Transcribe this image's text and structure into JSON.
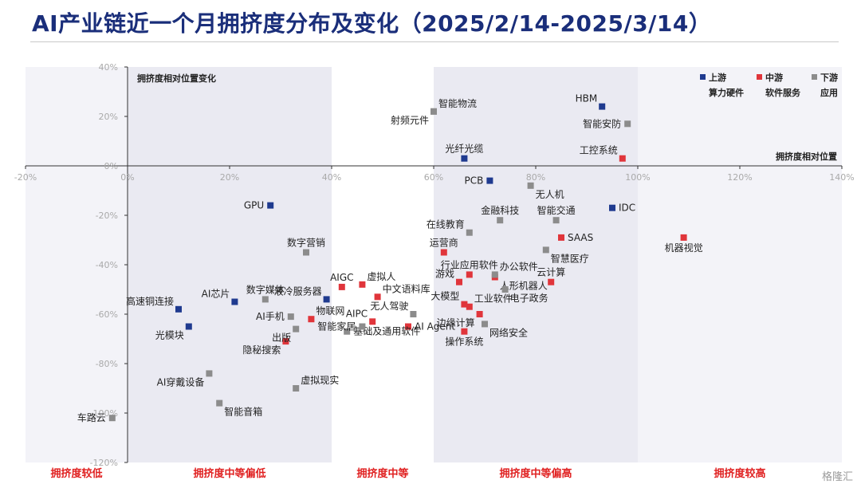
{
  "title": "AI产业链近一个月拥挤度分布及变化（2025/2/14-2025/3/14）",
  "watermark": "格隆汇",
  "colors": {
    "upstream": "#1f3a8f",
    "midstream": "#e0353b",
    "downstream": "#8c8c8c",
    "band": "#eaeaf2"
  },
  "chart_data": {
    "type": "scatter",
    "x_axis_title": "拥挤度相对位置",
    "y_axis_title": "拥挤度相对位置变化",
    "xlim": [
      -20,
      140
    ],
    "ylim": [
      -120,
      40
    ],
    "x_ticks": [
      "-20%",
      "0%",
      "20%",
      "40%",
      "60%",
      "80%",
      "100%",
      "120%",
      "140%"
    ],
    "y_ticks": [
      "40%",
      "20%",
      "0%",
      "-20%",
      "-40%",
      "-60%",
      "-80%",
      "-100%",
      "-120%"
    ],
    "zones": [
      "拥挤度较低",
      "拥挤度中等偏低",
      "拥挤度中等",
      "拥挤度中等偏高",
      "拥挤度较高"
    ],
    "legend": [
      {
        "series": "upstream",
        "title": "上游",
        "subtitle": "算力硬件"
      },
      {
        "series": "midstream",
        "title": "中游",
        "subtitle": "软件服务"
      },
      {
        "series": "downstream",
        "title": "下游",
        "subtitle": "应用"
      }
    ],
    "points": [
      {
        "label": "HBM",
        "series": "upstream",
        "x": 93,
        "y": 24,
        "pos": "tl"
      },
      {
        "label": "光纤光缆",
        "series": "upstream",
        "x": 66,
        "y": 3,
        "pos": "t"
      },
      {
        "label": "PCB",
        "series": "upstream",
        "x": 71,
        "y": -6,
        "pos": "l"
      },
      {
        "label": "IDC",
        "series": "upstream",
        "x": 95,
        "y": -17,
        "pos": "r"
      },
      {
        "label": "GPU",
        "series": "upstream",
        "x": 28,
        "y": -16,
        "pos": "l"
      },
      {
        "label": "液冷服务器",
        "series": "upstream",
        "x": 39,
        "y": -54,
        "pos": "tl"
      },
      {
        "label": "AI芯片",
        "series": "upstream",
        "x": 21,
        "y": -55,
        "pos": "tl"
      },
      {
        "label": "高速铜连接",
        "series": "upstream",
        "x": 10,
        "y": -58,
        "pos": "tl"
      },
      {
        "label": "光模块",
        "series": "upstream",
        "x": 12,
        "y": -65,
        "pos": "bl"
      },
      {
        "label": "工控系统",
        "series": "midstream",
        "x": 97,
        "y": 3,
        "pos": "tl"
      },
      {
        "label": "机器视觉",
        "series": "midstream",
        "x": 109,
        "y": -29,
        "pos": "b"
      },
      {
        "label": "SAAS",
        "series": "midstream",
        "x": 85,
        "y": -29,
        "pos": "r"
      },
      {
        "label": "云计算",
        "series": "midstream",
        "x": 83,
        "y": -47,
        "pos": "t"
      },
      {
        "label": "人形机器人",
        "series": "midstream",
        "x": 72,
        "y": -45,
        "pos": "br"
      },
      {
        "label": "运营商",
        "series": "midstream",
        "x": 62,
        "y": -35,
        "pos": "t"
      },
      {
        "label": "行业应用软件",
        "series": "midstream",
        "x": 67,
        "y": -44,
        "pos": "t"
      },
      {
        "label": "游戏",
        "series": "midstream",
        "x": 65,
        "y": -47,
        "pos": "tl"
      },
      {
        "label": "大模型",
        "series": "midstream",
        "x": 66,
        "y": -56,
        "pos": "tl"
      },
      {
        "label": "工业软件",
        "series": "midstream",
        "x": 67,
        "y": -57,
        "pos": "tr"
      },
      {
        "label": "边缘计算",
        "series": "midstream",
        "x": 69,
        "y": -60,
        "pos": "bl"
      },
      {
        "label": "操作系统",
        "series": "midstream",
        "x": 66,
        "y": -67,
        "pos": "b"
      },
      {
        "label": "AI Agent",
        "series": "midstream",
        "x": 55,
        "y": -65,
        "pos": "r"
      },
      {
        "label": "中文语料库",
        "series": "midstream",
        "x": 49,
        "y": -53,
        "pos": "tr"
      },
      {
        "label": "虚拟人",
        "series": "midstream",
        "x": 46,
        "y": -48,
        "pos": "tr"
      },
      {
        "label": "AIGC",
        "series": "midstream",
        "x": 42,
        "y": -49,
        "pos": "t"
      },
      {
        "label": "AIPC",
        "series": "midstream",
        "x": 48,
        "y": -63,
        "pos": "tl"
      },
      {
        "label": "物联网",
        "series": "midstream",
        "x": 36,
        "y": -62,
        "pos": "tr"
      },
      {
        "label": "隐秘搜索",
        "series": "midstream",
        "x": 31,
        "y": -71,
        "pos": "bl"
      },
      {
        "label": "智能物流",
        "series": "downstream",
        "x": 60,
        "y": 22,
        "pos": "tr"
      },
      {
        "label": "射频元件",
        "series": "downstream",
        "x": 60,
        "y": 22,
        "pos": "bl"
      },
      {
        "label": "智能安防",
        "series": "downstream",
        "x": 98,
        "y": 17,
        "pos": "l"
      },
      {
        "label": "无人机",
        "series": "downstream",
        "x": 79,
        "y": -8,
        "pos": "br"
      },
      {
        "label": "智能交通",
        "series": "downstream",
        "x": 84,
        "y": -22,
        "pos": "t"
      },
      {
        "label": "金融科技",
        "series": "downstream",
        "x": 73,
        "y": -22,
        "pos": "t"
      },
      {
        "label": "在线教育",
        "series": "downstream",
        "x": 67,
        "y": -27,
        "pos": "tl"
      },
      {
        "label": "智慧医疗",
        "series": "downstream",
        "x": 82,
        "y": -34,
        "pos": "br"
      },
      {
        "label": "办公软件",
        "series": "downstream",
        "x": 72,
        "y": -44,
        "pos": "tr"
      },
      {
        "label": "电子政务",
        "series": "downstream",
        "x": 74,
        "y": -50,
        "pos": "br"
      },
      {
        "label": "网络安全",
        "series": "downstream",
        "x": 70,
        "y": -64,
        "pos": "br"
      },
      {
        "label": "无人驾驶",
        "series": "downstream",
        "x": 56,
        "y": -60,
        "pos": "tl"
      },
      {
        "label": "基础及通用软件",
        "series": "downstream",
        "x": 43,
        "y": -67,
        "pos": "r"
      },
      {
        "label": "数字媒体",
        "series": "downstream",
        "x": 27,
        "y": -54,
        "pos": "t"
      },
      {
        "label": "AI手机",
        "series": "downstream",
        "x": 32,
        "y": -61,
        "pos": "l"
      },
      {
        "label": "出版",
        "series": "downstream",
        "x": 33,
        "y": -66,
        "pos": "bl"
      },
      {
        "label": "智能家居",
        "series": "downstream",
        "x": 46,
        "y": -65,
        "pos": "l"
      },
      {
        "label": "数字营销",
        "series": "downstream",
        "x": 35,
        "y": -35,
        "pos": "t"
      },
      {
        "label": "AI穿戴设备",
        "series": "downstream",
        "x": 16,
        "y": -84,
        "pos": "bl"
      },
      {
        "label": "智能音箱",
        "series": "downstream",
        "x": 18,
        "y": -96,
        "pos": "br"
      },
      {
        "label": "虚拟现实",
        "series": "downstream",
        "x": 33,
        "y": -90,
        "pos": "tr"
      },
      {
        "label": "车路云",
        "series": "downstream",
        "x": -3,
        "y": -102,
        "pos": "l"
      }
    ]
  }
}
